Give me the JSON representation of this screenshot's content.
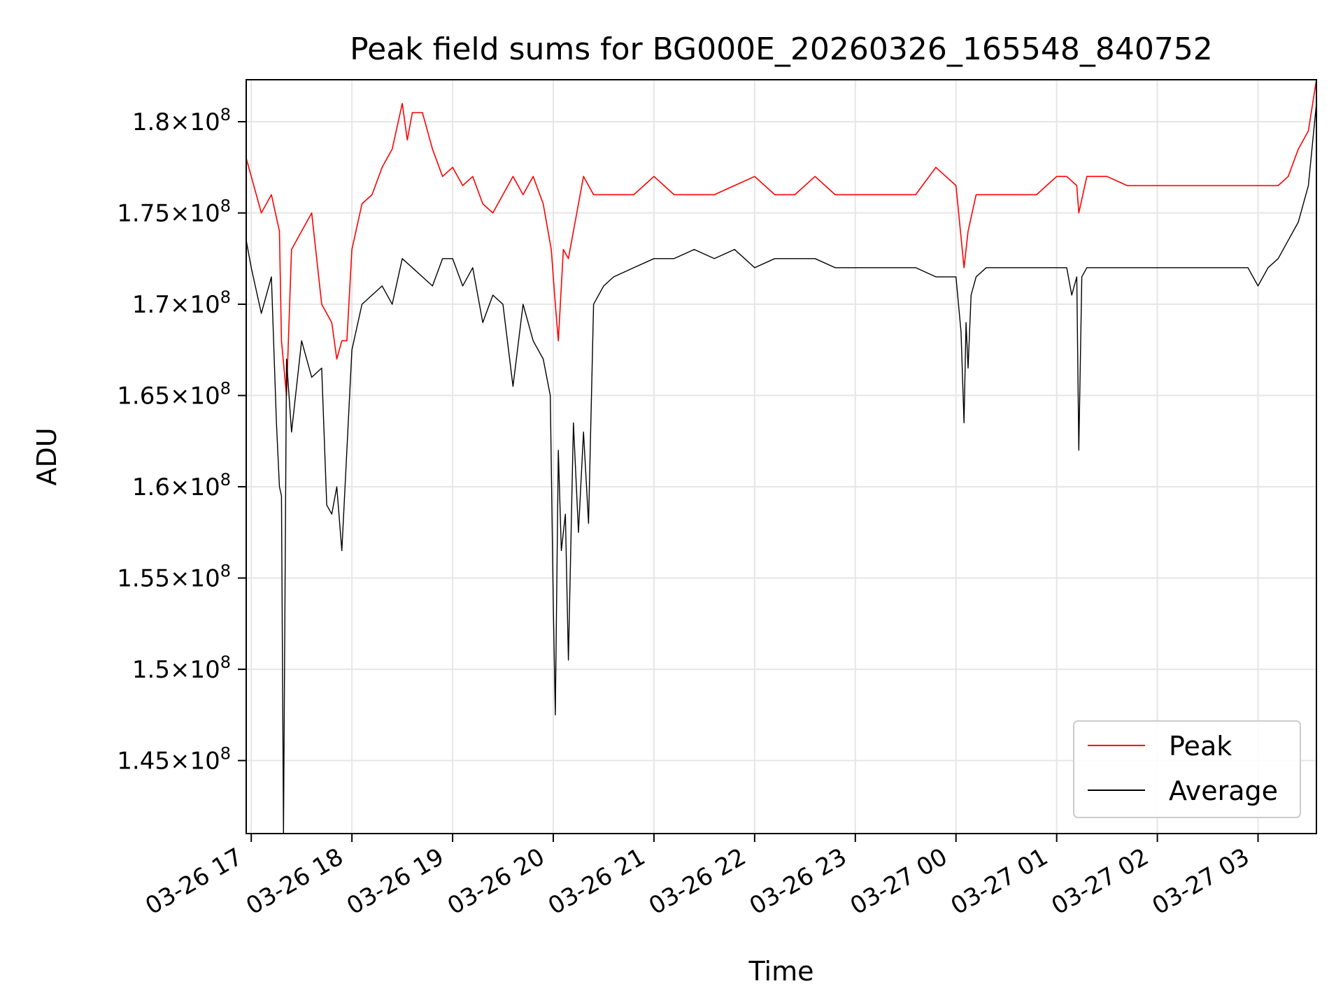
{
  "chart_data": {
    "type": "line",
    "title": "Peak field sums for BG000E_20260326_165548_840752",
    "xlabel": "Time",
    "ylabel": "ADU",
    "grid": true,
    "legend_position": "bottom-right",
    "xlim": [
      16.95,
      27.58
    ],
    "ylim": [
      141000000,
      182300000
    ],
    "x_ticks": [
      {
        "value": 17,
        "label": "03-26 17"
      },
      {
        "value": 18,
        "label": "03-26 18"
      },
      {
        "value": 19,
        "label": "03-26 19"
      },
      {
        "value": 20,
        "label": "03-26 20"
      },
      {
        "value": 21,
        "label": "03-26 21"
      },
      {
        "value": 22,
        "label": "03-26 22"
      },
      {
        "value": 23,
        "label": "03-26 23"
      },
      {
        "value": 24,
        "label": "03-27 00"
      },
      {
        "value": 25,
        "label": "03-27 01"
      },
      {
        "value": 26,
        "label": "03-27 02"
      },
      {
        "value": 27,
        "label": "03-27 03"
      }
    ],
    "y_ticks": [
      {
        "value": 145000000,
        "mantissa": "1.45",
        "exp": "8"
      },
      {
        "value": 150000000,
        "mantissa": "1.5",
        "exp": "8"
      },
      {
        "value": 155000000,
        "mantissa": "1.55",
        "exp": "8"
      },
      {
        "value": 160000000,
        "mantissa": "1.6",
        "exp": "8"
      },
      {
        "value": 165000000,
        "mantissa": "1.65",
        "exp": "8"
      },
      {
        "value": 170000000,
        "mantissa": "1.7",
        "exp": "8"
      },
      {
        "value": 175000000,
        "mantissa": "1.75",
        "exp": "8"
      },
      {
        "value": 180000000,
        "mantissa": "1.8",
        "exp": "8"
      }
    ],
    "tick_multiplier_symbol": "×",
    "tick_base": "10",
    "series": [
      {
        "name": "Peak",
        "color": "#ff0000",
        "x": [
          16.95,
          17.1,
          17.2,
          17.28,
          17.3,
          17.35,
          17.4,
          17.5,
          17.6,
          17.7,
          17.8,
          17.85,
          17.9,
          17.95,
          18.0,
          18.1,
          18.2,
          18.3,
          18.4,
          18.5,
          18.55,
          18.6,
          18.7,
          18.8,
          18.9,
          19.0,
          19.1,
          19.2,
          19.3,
          19.4,
          19.5,
          19.6,
          19.7,
          19.8,
          19.9,
          19.98,
          20.02,
          20.05,
          20.1,
          20.15,
          20.2,
          20.3,
          20.4,
          20.5,
          20.6,
          20.8,
          21.0,
          21.2,
          21.4,
          21.6,
          21.8,
          22.0,
          22.2,
          22.4,
          22.6,
          22.8,
          23.0,
          23.2,
          23.4,
          23.6,
          23.8,
          24.0,
          24.08,
          24.12,
          24.2,
          24.3,
          24.4,
          24.6,
          24.8,
          25.0,
          25.1,
          25.2,
          25.22,
          25.3,
          25.5,
          25.7,
          25.9,
          26.1,
          26.3,
          26.5,
          26.7,
          26.9,
          27.1,
          27.2,
          27.3,
          27.4,
          27.5,
          27.58
        ],
        "values": [
          178000000,
          175000000,
          176000000,
          174000000,
          168000000,
          165000000,
          173000000,
          174000000,
          175000000,
          170000000,
          169000000,
          167000000,
          168000000,
          168000000,
          173000000,
          175500000,
          176000000,
          177500000,
          178500000,
          181000000,
          179000000,
          180500000,
          180500000,
          178500000,
          177000000,
          177500000,
          176500000,
          177000000,
          175500000,
          175000000,
          176000000,
          177000000,
          176000000,
          177000000,
          175500000,
          173000000,
          170000000,
          168000000,
          173000000,
          172500000,
          174000000,
          177000000,
          176000000,
          176000000,
          176000000,
          176000000,
          177000000,
          176000000,
          176000000,
          176000000,
          176500000,
          177000000,
          176000000,
          176000000,
          177000000,
          176000000,
          176000000,
          176000000,
          176000000,
          176000000,
          177500000,
          176500000,
          172000000,
          174000000,
          176000000,
          176000000,
          176000000,
          176000000,
          176000000,
          177000000,
          177000000,
          176500000,
          175000000,
          177000000,
          177000000,
          176500000,
          176500000,
          176500000,
          176500000,
          176500000,
          176500000,
          176500000,
          176500000,
          176500000,
          177000000,
          178500000,
          179500000,
          182300000
        ]
      },
      {
        "name": "Average",
        "color": "#000000",
        "x": [
          16.95,
          17.0,
          17.1,
          17.2,
          17.25,
          17.28,
          17.3,
          17.32,
          17.35,
          17.4,
          17.5,
          17.6,
          17.7,
          17.75,
          17.8,
          17.85,
          17.9,
          17.95,
          18.0,
          18.1,
          18.2,
          18.3,
          18.4,
          18.5,
          18.6,
          18.7,
          18.8,
          18.9,
          19.0,
          19.1,
          19.2,
          19.3,
          19.4,
          19.5,
          19.6,
          19.7,
          19.8,
          19.9,
          19.97,
          20.0,
          20.02,
          20.05,
          20.08,
          20.12,
          20.15,
          20.2,
          20.25,
          20.3,
          20.35,
          20.4,
          20.5,
          20.6,
          20.8,
          21.0,
          21.2,
          21.4,
          21.6,
          21.8,
          22.0,
          22.2,
          22.4,
          22.6,
          22.8,
          23.0,
          23.2,
          23.4,
          23.6,
          23.8,
          24.0,
          24.05,
          24.08,
          24.1,
          24.12,
          24.15,
          24.2,
          24.3,
          24.4,
          24.6,
          24.8,
          25.0,
          25.1,
          25.15,
          25.2,
          25.22,
          25.25,
          25.3,
          25.5,
          25.7,
          25.9,
          26.1,
          26.3,
          26.5,
          26.7,
          26.9,
          27.0,
          27.1,
          27.2,
          27.3,
          27.4,
          27.5,
          27.58
        ],
        "values": [
          173500000,
          172000000,
          169500000,
          171500000,
          163500000,
          160000000,
          159500000,
          141000000,
          167000000,
          163000000,
          168000000,
          166000000,
          166500000,
          159000000,
          158500000,
          160000000,
          156500000,
          162000000,
          167500000,
          170000000,
          170500000,
          171000000,
          170000000,
          172500000,
          172000000,
          171500000,
          171000000,
          172500000,
          172500000,
          171000000,
          172000000,
          169000000,
          170500000,
          170000000,
          165500000,
          170000000,
          168000000,
          167000000,
          165000000,
          153500000,
          147500000,
          162000000,
          156500000,
          158500000,
          150500000,
          163500000,
          157500000,
          163000000,
          158000000,
          170000000,
          171000000,
          171500000,
          172000000,
          172500000,
          172500000,
          173000000,
          172500000,
          173000000,
          172000000,
          172500000,
          172500000,
          172500000,
          172000000,
          172000000,
          172000000,
          172000000,
          172000000,
          171500000,
          171500000,
          168500000,
          163500000,
          169000000,
          166500000,
          170500000,
          171500000,
          172000000,
          172000000,
          172000000,
          172000000,
          172000000,
          172000000,
          170500000,
          171500000,
          162000000,
          171500000,
          172000000,
          172000000,
          172000000,
          172000000,
          172000000,
          172000000,
          172000000,
          172000000,
          172000000,
          171000000,
          172000000,
          172500000,
          173500000,
          174500000,
          176500000,
          181000000
        ]
      }
    ]
  }
}
